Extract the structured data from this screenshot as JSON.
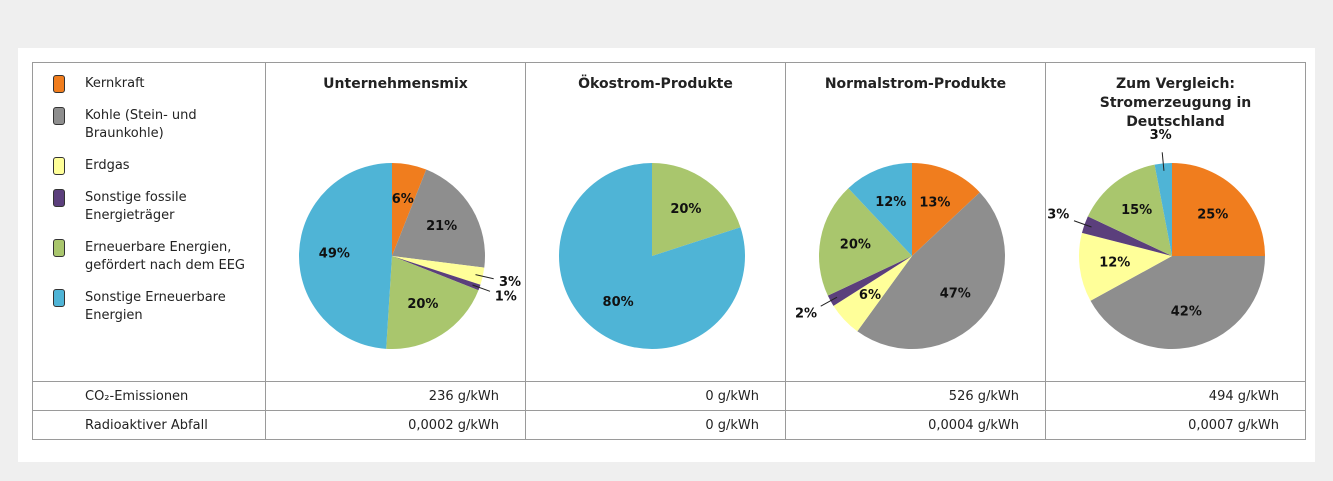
{
  "legend": [
    {
      "label": "Kernkraft",
      "color": "#f07d1e"
    },
    {
      "label": "Kohle (Stein- und Braunkohle)",
      "color": "#8e8e8e"
    },
    {
      "label": "Erdgas",
      "color": "#ffff99"
    },
    {
      "label": "Sonstige fossile Energieträger",
      "color": "#5b3f7c"
    },
    {
      "label": "Erneuerbare Energien, gefördert nach dem EEG",
      "color": "#a9c66d"
    },
    {
      "label": "Sonstige Erneuerbare Energien",
      "color": "#4fb4d6"
    }
  ],
  "chart_data": [
    {
      "type": "pie",
      "title": "Unternehmensmix",
      "values": [
        6,
        21,
        3,
        1,
        20,
        49
      ],
      "value_labels": [
        "6%",
        "21%",
        "3%",
        "1%",
        "20%",
        "49%"
      ]
    },
    {
      "type": "pie",
      "title": "Ökostrom-Produkte",
      "values": [
        0,
        0,
        0,
        0,
        20,
        80
      ],
      "value_labels": [
        null,
        null,
        null,
        null,
        "20%",
        "80%"
      ]
    },
    {
      "type": "pie",
      "title": "Normalstrom-Produkte",
      "values": [
        13,
        47,
        6,
        2,
        20,
        12
      ],
      "value_labels": [
        "13%",
        "47%",
        "6%",
        "2%",
        "20%",
        "12%"
      ]
    },
    {
      "type": "pie",
      "title": "Zum Vergleich: Stromerzeugung in Deutschland",
      "values": [
        25,
        42,
        12,
        3,
        15,
        3
      ],
      "value_labels": [
        "25%",
        "42%",
        "12%",
        "3%",
        "15%",
        "3%"
      ]
    }
  ],
  "table": {
    "rows": [
      {
        "label": "CO₂-Emissionen",
        "values": [
          "236 g/kWh",
          "0 g/kWh",
          "526 g/kWh",
          "494 g/kWh"
        ]
      },
      {
        "label": "Radioaktiver Abfall",
        "values": [
          "0,0002 g/kWh",
          "0 g/kWh",
          "0,0004 g/kWh",
          "0,0007 g/kWh"
        ]
      }
    ]
  }
}
